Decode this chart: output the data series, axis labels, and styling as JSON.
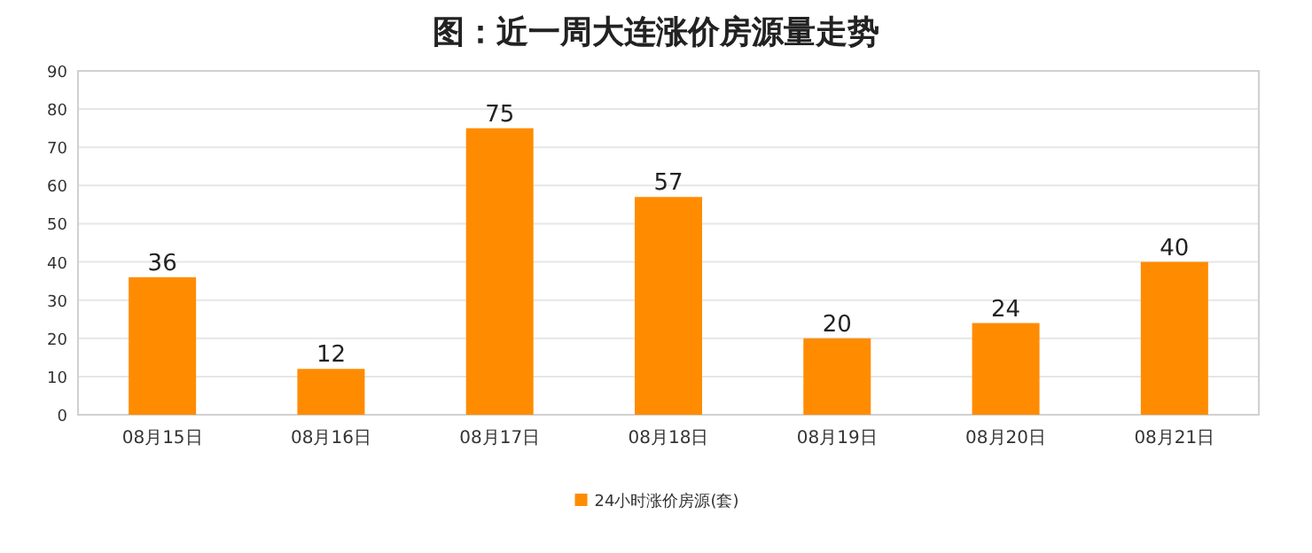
{
  "chart_data": {
    "type": "bar",
    "title": "图：近一周大连涨价房源量走势",
    "categories": [
      "08月15日",
      "08月16日",
      "08月17日",
      "08月18日",
      "08月19日",
      "08月20日",
      "08月21日"
    ],
    "series": [
      {
        "name": "24小时涨价房源(套)",
        "color": "#ff8c00",
        "values": [
          36,
          12,
          75,
          57,
          20,
          24,
          40
        ]
      }
    ],
    "ylim": [
      0,
      90
    ],
    "yticks": [
      0,
      10,
      20,
      30,
      40,
      50,
      60,
      70,
      80,
      90
    ],
    "grid": "y",
    "legend": "bottom",
    "data_labels": true
  }
}
